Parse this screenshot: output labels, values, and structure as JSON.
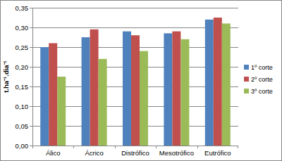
{
  "chart_data": {
    "type": "bar",
    "y_label": "t.ha⁻¹.dia⁻¹",
    "categories": [
      "Álico",
      "Ácrico",
      "Distrófico",
      "Mesotrófico",
      "Eutrófico"
    ],
    "series": [
      {
        "name": "1º corte",
        "color": "#4f81bd",
        "values": [
          0.25,
          0.275,
          0.29,
          0.285,
          0.32
        ]
      },
      {
        "name": "2º corte",
        "color": "#c0504d",
        "values": [
          0.26,
          0.295,
          0.28,
          0.29,
          0.325
        ]
      },
      {
        "name": "3º corte",
        "color": "#9bbb59",
        "values": [
          0.175,
          0.22,
          0.24,
          0.27,
          0.31
        ]
      }
    ],
    "ylim": [
      0,
      0.35
    ],
    "yticks": [
      {
        "value": 0,
        "label": "0,00"
      },
      {
        "value": 0.05,
        "label": "0,05"
      },
      {
        "value": 0.1,
        "label": "0,10"
      },
      {
        "value": 0.15,
        "label": "0,15"
      },
      {
        "value": 0.2,
        "label": "0,20"
      },
      {
        "value": 0.25,
        "label": "0,25"
      },
      {
        "value": 0.3,
        "label": "0,30"
      },
      {
        "value": 0.35,
        "label": "0,35"
      }
    ],
    "grid": true,
    "legend": "right"
  }
}
